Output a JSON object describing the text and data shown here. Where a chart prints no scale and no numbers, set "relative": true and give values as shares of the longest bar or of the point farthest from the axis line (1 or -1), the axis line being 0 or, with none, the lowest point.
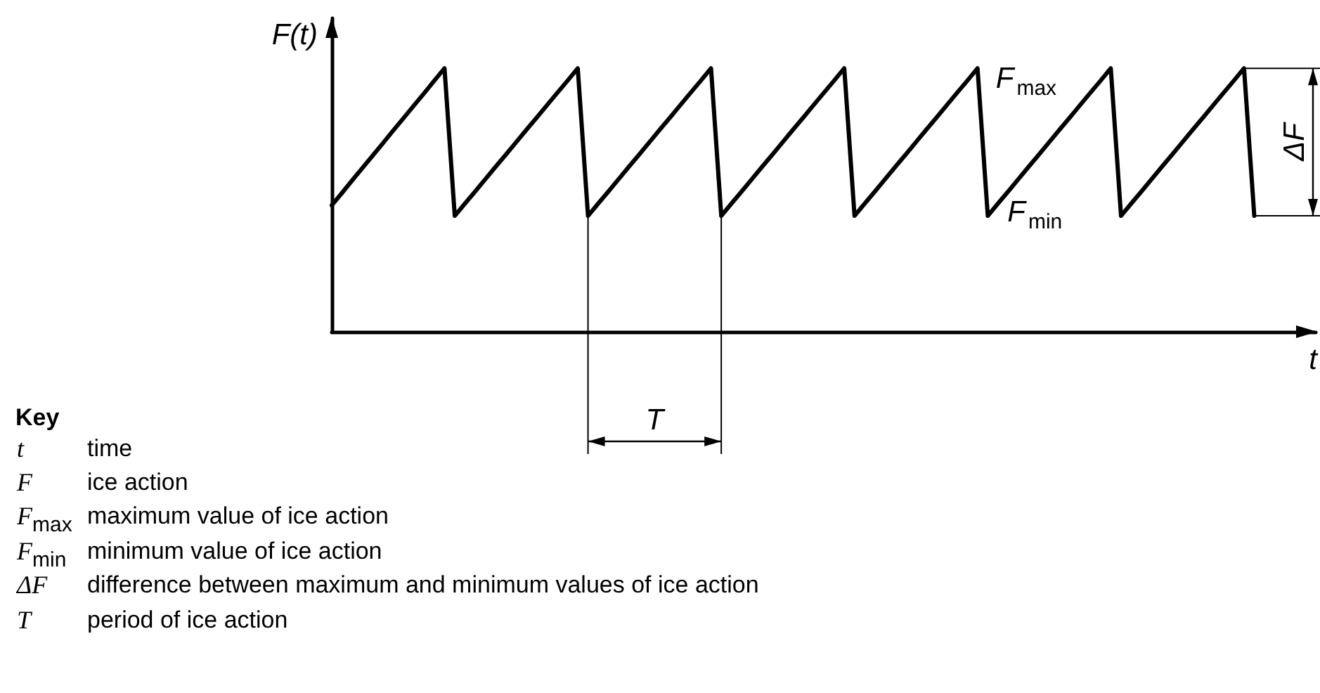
{
  "chart_data": {
    "type": "line",
    "relative": true,
    "ylabel": "F(t)",
    "xlabel": "t",
    "color": "#000000",
    "marker": "none",
    "line_style": "solid",
    "categories": [
      null,
      null,
      null,
      null,
      null,
      null,
      null,
      null,
      null,
      null,
      null,
      null,
      null,
      null,
      null,
      null,
      null,
      null,
      null,
      null,
      null,
      null,
      null,
      null,
      null,
      null,
      null,
      null,
      null,
      null,
      null,
      null,
      null,
      null,
      null,
      null,
      null,
      null,
      null,
      null,
      null,
      null,
      null,
      null,
      null,
      null,
      null,
      null,
      null,
      null,
      null,
      null,
      null,
      null,
      null,
      null,
      null,
      null,
      null,
      null,
      null,
      null,
      null,
      null,
      null,
      null,
      null,
      null,
      null,
      null,
      null,
      null,
      null,
      null,
      null,
      null,
      null,
      null,
      null,
      null,
      null,
      null,
      null,
      null,
      null,
      null,
      null,
      null,
      null,
      null,
      null,
      null,
      null,
      null,
      null,
      null,
      null
    ],
    "values": [
      0.48,
      0.527,
      0.575,
      0.622,
      0.669,
      0.716,
      0.764,
      0.811,
      0.858,
      0.905,
      0.953,
      1,
      0.44,
      0.487,
      0.533,
      0.58,
      0.627,
      0.673,
      0.72,
      0.767,
      0.813,
      0.86,
      0.907,
      0.953,
      1,
      0.44,
      0.487,
      0.533,
      0.58,
      0.627,
      0.673,
      0.72,
      0.767,
      0.813,
      0.86,
      0.907,
      0.953,
      1,
      0.44,
      0.487,
      0.533,
      0.58,
      0.627,
      0.673,
      0.72,
      0.767,
      0.813,
      0.86,
      0.907,
      0.953,
      1,
      0.44,
      0.487,
      0.533,
      0.58,
      0.627,
      0.673,
      0.72,
      0.767,
      0.813,
      0.86,
      0.907,
      0.953,
      1,
      0.44,
      0.487,
      0.533,
      0.58,
      0.627,
      0.673,
      0.72,
      0.767,
      0.813,
      0.86,
      0.907,
      0.953,
      1,
      0.44,
      0.487,
      0.533,
      0.58,
      0.627,
      0.673,
      0.72,
      0.767,
      0.813,
      0.86,
      0.907,
      0.953,
      1,
      0.44,
      null,
      null,
      null,
      null,
      null,
      null
    ],
    "annotations": [
      "F$_{max}$",
      "F$_{min}$",
      "ΔF",
      "T",
      "Key",
      "t",
      "time",
      "F",
      "ice action",
      "F$_{max}$",
      "maximum value of ice action",
      "F$_{min}$",
      "minimum value of ice action",
      "ΔF",
      "difference between maximum and minimum values of ice action",
      "T",
      "period of ice action"
    ]
  }
}
